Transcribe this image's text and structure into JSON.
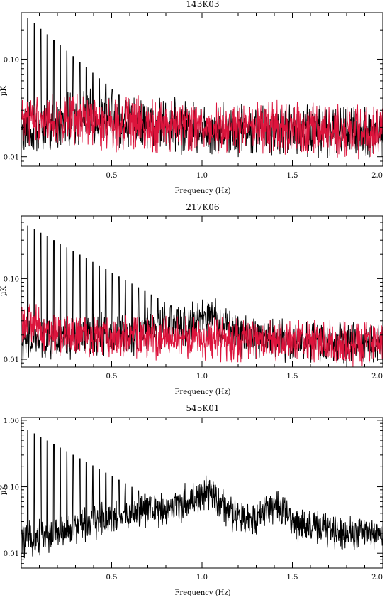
{
  "chart_data": [
    {
      "type": "line",
      "title": "143K03",
      "xlabel": "Frequency (Hz)",
      "ylabel": "µK",
      "xlim": [
        0.0,
        2.0
      ],
      "ylim": [
        0.008,
        0.3
      ],
      "yscale": "log",
      "x_ticks": [
        0.5,
        1.0,
        1.5,
        2.0
      ],
      "x_tick_labels": [
        "0.5",
        "1.0",
        "1.5",
        "2.0"
      ],
      "y_ticks": [
        0.01,
        0.1
      ],
      "y_tick_labels": [
        "0.01",
        "0.10"
      ],
      "grid": false,
      "legend": "none",
      "colors": [
        "#000000",
        "#dc143c"
      ],
      "series": [
        {
          "color": "#000000",
          "values": "noisy spectrum with harmonic spikes at multiples of ~0.036 Hz",
          "base": [
            [
              0.0,
              0.018
            ],
            [
              0.2,
              0.02
            ],
            [
              0.3,
              0.026
            ],
            [
              0.6,
              0.022
            ],
            [
              1.0,
              0.02
            ],
            [
              1.5,
              0.019
            ],
            [
              2.0,
              0.018
            ]
          ],
          "spikes": {
            "spacing": 0.036,
            "start": 0.036,
            "end": 0.85,
            "peak_start": 0.3,
            "decay": 4.0
          }
        },
        {
          "color": "#dc143c",
          "values": "noisy spectrum, flat",
          "base": [
            [
              0.0,
              0.025
            ],
            [
              0.5,
              0.022
            ],
            [
              1.0,
              0.02
            ],
            [
              1.5,
              0.019
            ],
            [
              2.0,
              0.018
            ]
          ],
          "spikes": {
            "spacing": 0.036,
            "start": 0.036,
            "end": 0.0,
            "peak_start": 0.3,
            "decay": 4.0
          }
        }
      ]
    },
    {
      "type": "line",
      "title": "217K06",
      "xlabel": "Frequency (Hz)",
      "ylabel": "µK",
      "xlim": [
        0.0,
        2.0
      ],
      "ylim": [
        0.008,
        0.6
      ],
      "yscale": "log",
      "x_ticks": [
        0.5,
        1.0,
        1.5,
        2.0
      ],
      "x_tick_labels": [
        "0.5",
        "1.0",
        "1.5",
        "2.0"
      ],
      "y_ticks": [
        0.01,
        0.1
      ],
      "y_tick_labels": [
        "0.01",
        "0.10"
      ],
      "grid": false,
      "legend": "none",
      "colors": [
        "#000000",
        "#dc143c"
      ],
      "series": [
        {
          "color": "#000000",
          "values": "noisy spectrum with harmonic spikes",
          "base": [
            [
              0.0,
              0.016
            ],
            [
              0.5,
              0.02
            ],
            [
              0.9,
              0.026
            ],
            [
              1.05,
              0.032
            ],
            [
              1.2,
              0.02
            ],
            [
              1.5,
              0.017
            ],
            [
              2.0,
              0.015
            ]
          ],
          "spikes": {
            "spacing": 0.036,
            "start": 0.036,
            "end": 1.1,
            "peak_start": 0.5,
            "decay": 3.2
          }
        },
        {
          "color": "#dc143c",
          "values": "noisy spectrum, flat",
          "base": [
            [
              0.0,
              0.03
            ],
            [
              0.2,
              0.02
            ],
            [
              1.0,
              0.018
            ],
            [
              1.5,
              0.017
            ],
            [
              2.0,
              0.015
            ]
          ],
          "spikes": {
            "spacing": 0.036,
            "start": 0.036,
            "end": 0.0,
            "peak_start": 0.5,
            "decay": 3.2
          }
        }
      ]
    },
    {
      "type": "line",
      "title": "545K01",
      "xlabel": "Frequency (Hz)",
      "ylabel": "µK",
      "xlim": [
        0.0,
        2.0
      ],
      "ylim": [
        0.006,
        1.1
      ],
      "yscale": "log",
      "x_ticks": [
        0.5,
        1.0,
        1.5,
        2.0
      ],
      "x_tick_labels": [
        "0.5",
        "1.0",
        "1.5",
        "2.0"
      ],
      "y_ticks": [
        0.01,
        0.1,
        1.0
      ],
      "y_tick_labels": [
        "0.01",
        "0.10",
        "1.00"
      ],
      "grid": false,
      "legend": "none",
      "colors": [
        "#000000"
      ],
      "series": [
        {
          "color": "#000000",
          "values": "noisy spectrum with harmonic spikes and broad bumps near 1.05 Hz and 1.4 Hz",
          "base": [
            [
              0.0,
              0.015
            ],
            [
              0.2,
              0.02
            ],
            [
              0.4,
              0.03
            ],
            [
              0.6,
              0.04
            ],
            [
              0.8,
              0.045
            ],
            [
              0.95,
              0.065
            ],
            [
              1.05,
              0.08
            ],
            [
              1.15,
              0.04
            ],
            [
              1.25,
              0.03
            ],
            [
              1.4,
              0.055
            ],
            [
              1.5,
              0.03
            ],
            [
              1.7,
              0.022
            ],
            [
              2.0,
              0.02
            ]
          ],
          "spikes": {
            "spacing": 0.036,
            "start": 0.036,
            "end": 0.85,
            "peak_start": 0.8,
            "decay": 3.8
          }
        }
      ]
    }
  ]
}
